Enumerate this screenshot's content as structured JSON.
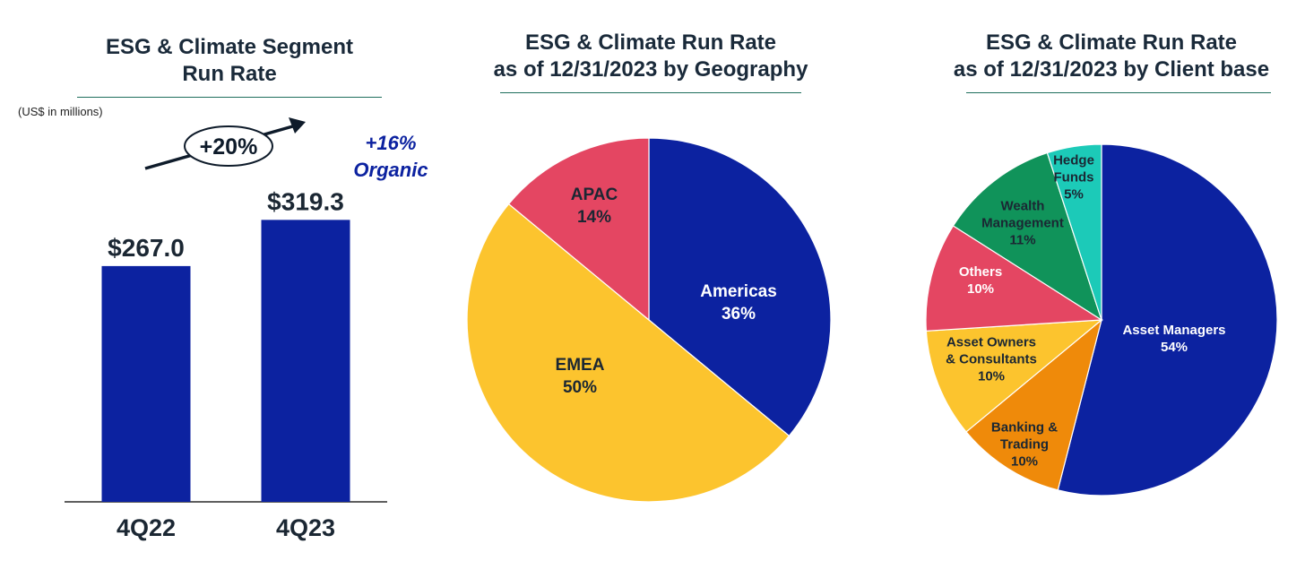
{
  "colors": {
    "navy": "#0c22a0",
    "yellow": "#fcc42e",
    "red": "#e44662",
    "green": "#10935a",
    "teal": "#1ccab8",
    "orange": "#ef8a0a",
    "rule": "#1f6e5c"
  },
  "bar_panel": {
    "title_line1": "ESG & Climate Segment",
    "title_line2": "Run Rate",
    "unit_note": "(US$ in millions)",
    "growth_label": "+20%",
    "organic_line1": "+16%",
    "organic_line2": "Organic"
  },
  "geo_panel": {
    "title_line1": "ESG & Climate Run Rate",
    "title_line2": "as of 12/31/2023 by Geography"
  },
  "client_panel": {
    "title_line1": "ESG & Climate Run Rate",
    "title_line2": "as of 12/31/2023 by Client base"
  },
  "chart_data": [
    {
      "type": "bar",
      "title": "ESG & Climate Segment Run Rate",
      "ylabel": "(US$ in millions)",
      "categories": [
        "4Q22",
        "4Q23"
      ],
      "values": [
        267.0,
        319.3
      ],
      "data_labels": [
        "$267.0",
        "$319.3"
      ],
      "annotations": [
        "+20%",
        "+16% Organic"
      ]
    },
    {
      "type": "pie",
      "title": "ESG & Climate Run Rate as of 12/31/2023 by Geography",
      "slices": [
        {
          "label": "Americas",
          "value": 36,
          "value_label": "36%",
          "color": "#0c22a0",
          "text_color": "#ffffff"
        },
        {
          "label": "EMEA",
          "value": 50,
          "value_label": "50%",
          "color": "#fcc42e",
          "text_color": "#1b2733"
        },
        {
          "label": "APAC",
          "value": 14,
          "value_label": "14%",
          "color": "#e44662",
          "text_color": "#1b2733"
        }
      ]
    },
    {
      "type": "pie",
      "title": "ESG & Climate Run Rate as of 12/31/2023 by Client base",
      "slices": [
        {
          "label": "Asset Managers",
          "value": 54,
          "value_label": "54%",
          "color": "#0c22a0",
          "text_color": "#ffffff"
        },
        {
          "label": "Banking & Trading",
          "value": 10,
          "value_label": "10%",
          "color": "#ef8a0a",
          "text_color": "#1b2733"
        },
        {
          "label": "Asset Owners & Consultants",
          "value": 10,
          "value_label": "10%",
          "color": "#fcc42e",
          "text_color": "#1b2733"
        },
        {
          "label": "Others",
          "value": 10,
          "value_label": "10%",
          "color": "#e44662",
          "text_color": "#ffffff"
        },
        {
          "label": "Wealth Management",
          "value": 11,
          "value_label": "11%",
          "color": "#10935a",
          "text_color": "#1b2733"
        },
        {
          "label": "Hedge Funds",
          "value": 5,
          "value_label": "5%",
          "color": "#1ccab8",
          "text_color": "#1b2733"
        }
      ]
    }
  ]
}
